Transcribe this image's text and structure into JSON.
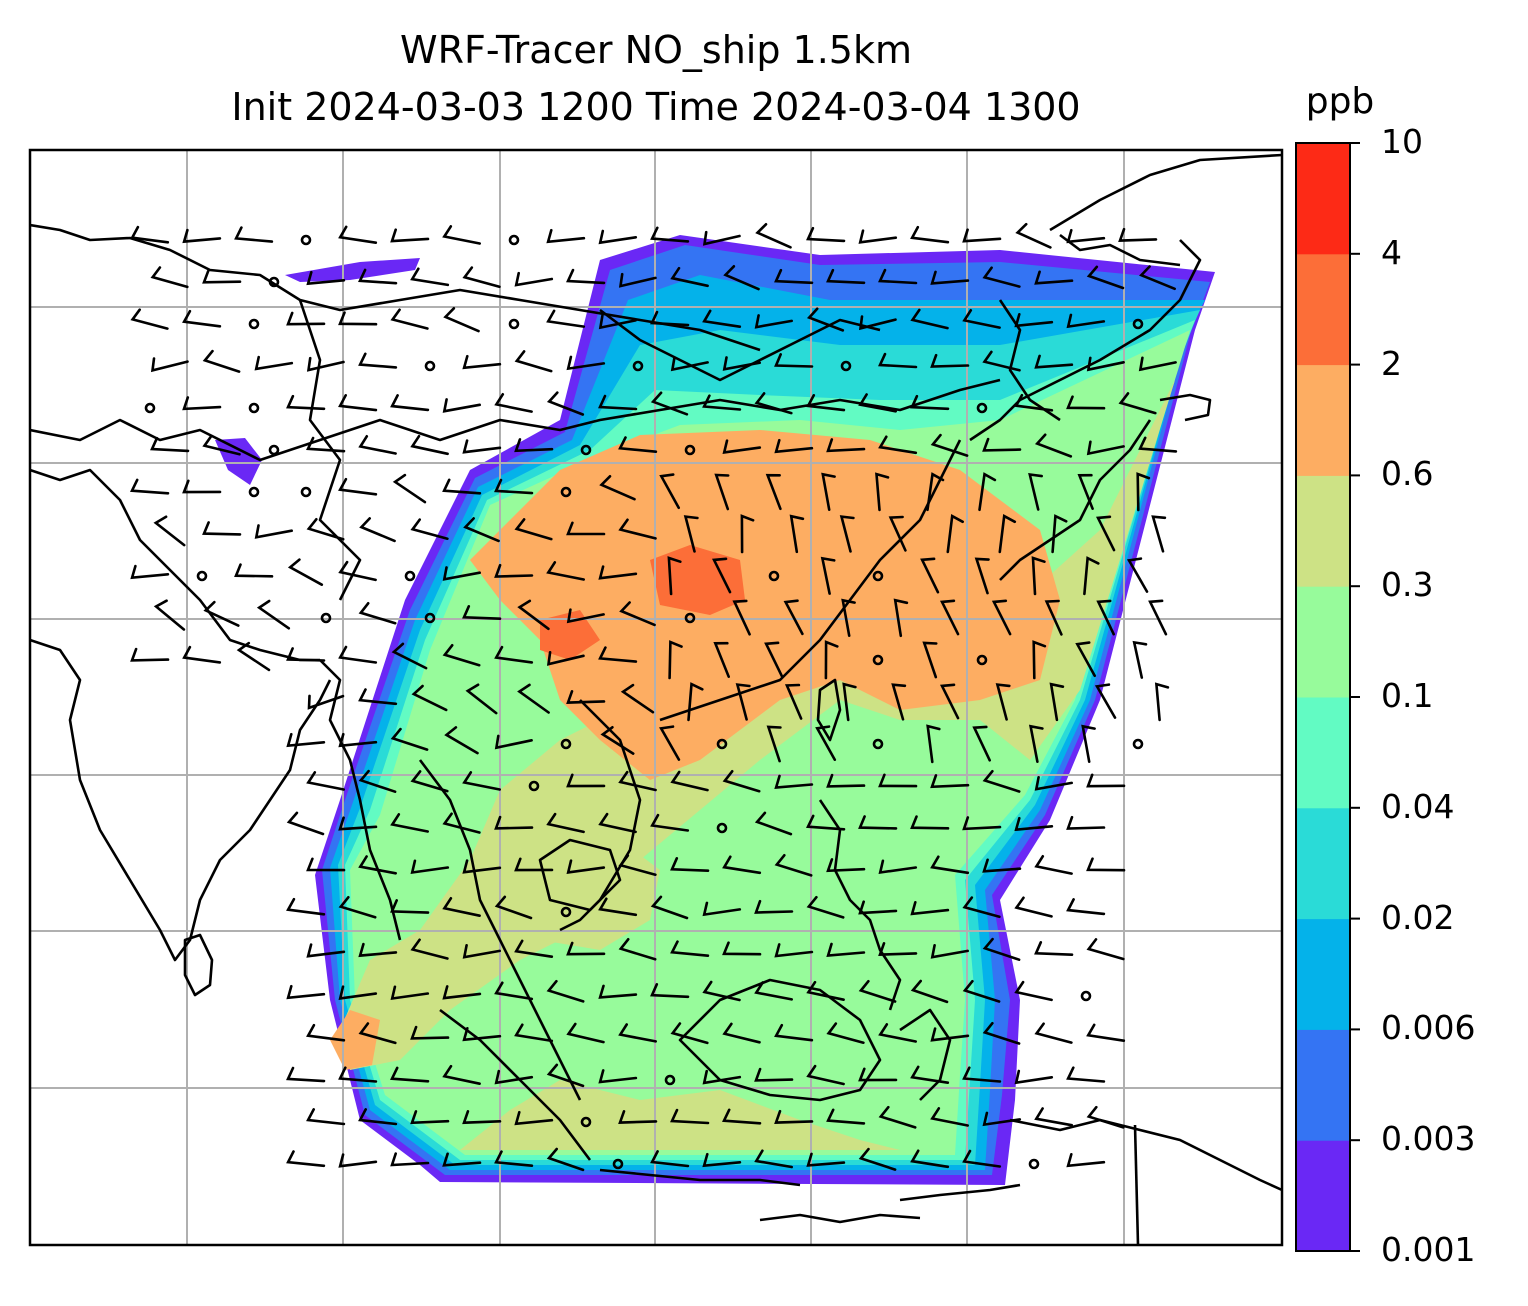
{
  "title": {
    "line1": "WRF-Tracer NO_ship 1.5km",
    "line2": "Init 2024-03-03 1200 Time 2024-03-04 1300"
  },
  "colorbar": {
    "unit": "ppb",
    "ticks": [
      "0.001",
      "0.003",
      "0.006",
      "0.02",
      "0.04",
      "0.1",
      "0.3",
      "0.6",
      "2",
      "4",
      "10"
    ],
    "colors": [
      "#6a28f5",
      "#3474f3",
      "#04b2ea",
      "#2adbd7",
      "#62fbc3",
      "#97fb9b",
      "#cde285",
      "#fdad62",
      "#fc6e38",
      "#fd2a16"
    ]
  },
  "map": {
    "gridlines": true,
    "layers": [
      "coastlines",
      "country-borders",
      "tracer-concentration",
      "wind-barbs"
    ]
  }
}
